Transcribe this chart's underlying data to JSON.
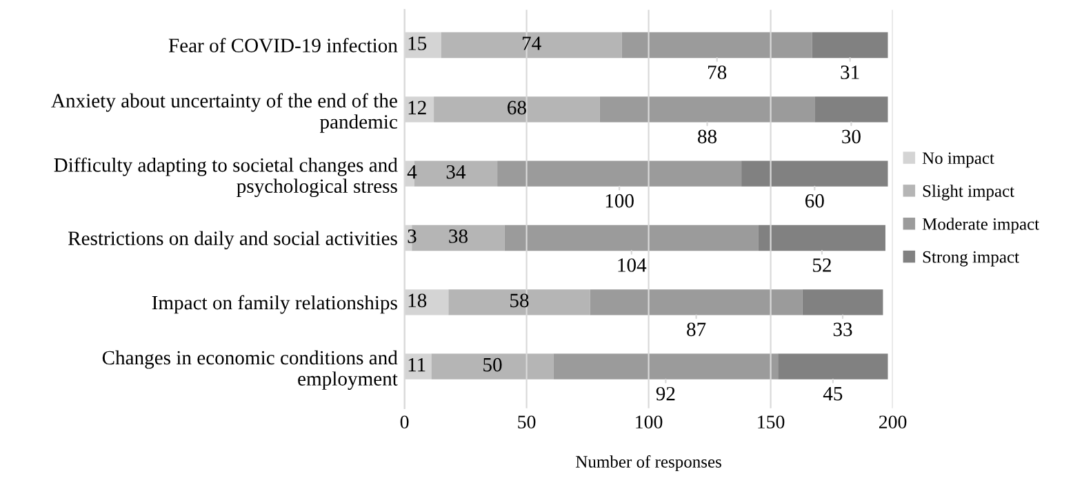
{
  "chart_data": {
    "type": "bar",
    "orientation": "horizontal",
    "stacked": true,
    "xlabel": "Number of responses",
    "categories": [
      "Fear of COVID-19 infection",
      "Anxiety about uncertainty of the end of the pandemic",
      "Difficulty adapting to societal changes and psychological stress",
      "Restrictions on daily and social activities",
      "Impact on family relationships",
      "Changes in economic conditions and employment"
    ],
    "series": [
      {
        "name": "No impact",
        "color": "#d4d4d4",
        "values": [
          15,
          12,
          4,
          3,
          18,
          11
        ]
      },
      {
        "name": "Slight impact",
        "color": "#b5b5b5",
        "values": [
          74,
          68,
          34,
          38,
          58,
          50
        ]
      },
      {
        "name": "Moderate impact",
        "color": "#9b9b9b",
        "values": [
          78,
          88,
          100,
          104,
          87,
          92
        ]
      },
      {
        "name": "Strong impact",
        "color": "#818181",
        "values": [
          31,
          30,
          60,
          52,
          33,
          45
        ]
      }
    ],
    "xlim": [
      0,
      200
    ],
    "xticks": [
      0,
      50,
      100,
      150,
      200
    ],
    "grid": "x",
    "legend": "right",
    "data_labels": true
  }
}
